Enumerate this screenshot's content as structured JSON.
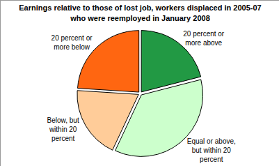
{
  "chart_data": {
    "type": "pie",
    "title": "Earnings relative to those of lost job, workers displaced in 2005-07 who were reemployed in January 2008",
    "categories": [
      "20 percent or more above",
      "Equal or above, but within 20 percent",
      "Below, but within 20 percent",
      "20 percent or more below"
    ],
    "values": [
      21,
      36,
      19,
      24
    ],
    "colors": [
      "#229944",
      "#ccffcc",
      "#ffcc99",
      "#ff6611"
    ]
  }
}
